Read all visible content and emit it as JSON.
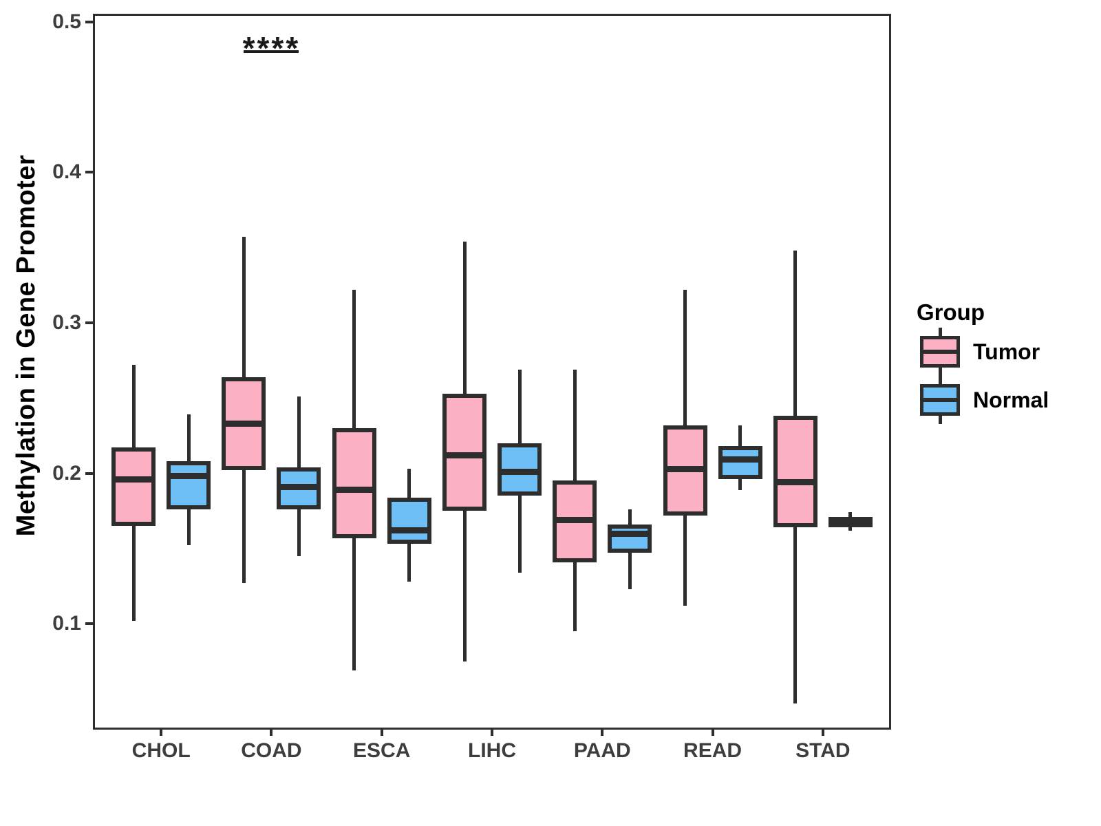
{
  "chart_data": {
    "type": "boxplot",
    "title": "",
    "xlabel": "",
    "ylabel": "Methylation in Gene Promoter",
    "categories": [
      "CHOL",
      "COAD",
      "ESCA",
      "LIHC",
      "PAAD",
      "READ",
      "STAD"
    ],
    "ylim": [
      0.031,
      0.504
    ],
    "y_ticks": [
      0.5,
      0.4,
      0.3,
      0.2,
      0.1
    ],
    "y_tick_labels": [
      "0.5",
      "0.4",
      "0.3",
      "0.2",
      "0.1"
    ],
    "grid": false,
    "legend": {
      "title": "Group",
      "position": "right",
      "entries": [
        {
          "label": "Tumor",
          "color": "#FBB1C3"
        },
        {
          "label": "Normal",
          "color": "#6EBFF5"
        }
      ]
    },
    "series": [
      {
        "name": "Tumor",
        "color": "#FBB1C3",
        "boxes": [
          {
            "category": "CHOL",
            "min": 0.102,
            "q1": 0.165,
            "median": 0.196,
            "q3": 0.217,
            "max": 0.272
          },
          {
            "category": "COAD",
            "min": 0.127,
            "q1": 0.202,
            "median": 0.233,
            "q3": 0.264,
            "max": 0.357
          },
          {
            "category": "ESCA",
            "min": 0.069,
            "q1": 0.157,
            "median": 0.189,
            "q3": 0.23,
            "max": 0.322
          },
          {
            "category": "LIHC",
            "min": 0.075,
            "q1": 0.175,
            "median": 0.212,
            "q3": 0.253,
            "max": 0.354
          },
          {
            "category": "PAAD",
            "min": 0.095,
            "q1": 0.141,
            "median": 0.169,
            "q3": 0.195,
            "max": 0.269
          },
          {
            "category": "READ",
            "min": 0.112,
            "q1": 0.172,
            "median": 0.203,
            "q3": 0.232,
            "max": 0.322
          },
          {
            "category": "STAD",
            "min": 0.047,
            "q1": 0.164,
            "median": 0.194,
            "q3": 0.238,
            "max": 0.348
          }
        ]
      },
      {
        "name": "Normal",
        "color": "#6EBFF5",
        "boxes": [
          {
            "category": "CHOL",
            "min": 0.152,
            "q1": 0.176,
            "median": 0.198,
            "q3": 0.208,
            "max": 0.239
          },
          {
            "category": "COAD",
            "min": 0.145,
            "q1": 0.176,
            "median": 0.191,
            "q3": 0.204,
            "max": 0.251
          },
          {
            "category": "ESCA",
            "min": 0.128,
            "q1": 0.153,
            "median": 0.162,
            "q3": 0.184,
            "max": 0.203
          },
          {
            "category": "LIHC",
            "min": 0.134,
            "q1": 0.185,
            "median": 0.201,
            "q3": 0.22,
            "max": 0.269
          },
          {
            "category": "PAAD",
            "min": 0.123,
            "q1": 0.147,
            "median": 0.16,
            "q3": 0.166,
            "max": 0.176
          },
          {
            "category": "READ",
            "min": 0.189,
            "q1": 0.196,
            "median": 0.209,
            "q3": 0.218,
            "max": 0.232
          },
          {
            "category": "STAD",
            "min": 0.162,
            "q1": 0.164,
            "median": 0.168,
            "q3": 0.171,
            "max": 0.174
          }
        ]
      }
    ],
    "annotations": [
      {
        "text": "****",
        "category": "COAD",
        "between": [
          "Tumor",
          "Normal"
        ],
        "y_value": 0.48
      }
    ],
    "colors": {
      "stroke": "#2d2d2d",
      "axis_text": "#3d3d3d",
      "title_text": "#000000",
      "background": "#ffffff"
    }
  }
}
